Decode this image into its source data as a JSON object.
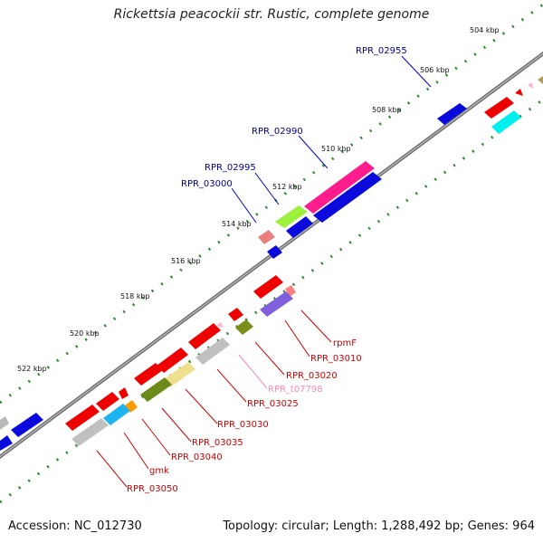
{
  "title": "Rickettsia peacockii str. Rustic, complete genome",
  "footer": {
    "accession": "Accession: NC_012730",
    "topology": "Topology: circular; Length: 1,288,492 bp; Genes: 964"
  },
  "colors": {
    "backbone": "#808080",
    "tick_marks": "#2e8b2e",
    "plus_label": "#00008b",
    "minus_label": "#cc0000",
    "trna_label": "#ff88bb"
  },
  "ticks": [
    "504 kbp",
    "506 kbp",
    "508 kbp",
    "510 kbp",
    "512 kbp",
    "514 kbp",
    "516 kbp",
    "518 kbp",
    "520 kbp",
    "522 kbp"
  ],
  "labels": [
    "RPR_02955",
    "RPR_02990",
    "RPR_02995",
    "RPR_03000",
    "rpmF",
    "RPR_03010",
    "RPR_03020",
    "RPR_t07798",
    "RPR_03025",
    "RPR_03030",
    "RPR_03035",
    "RPR_03040",
    "gmk",
    "RPR_03050"
  ]
}
